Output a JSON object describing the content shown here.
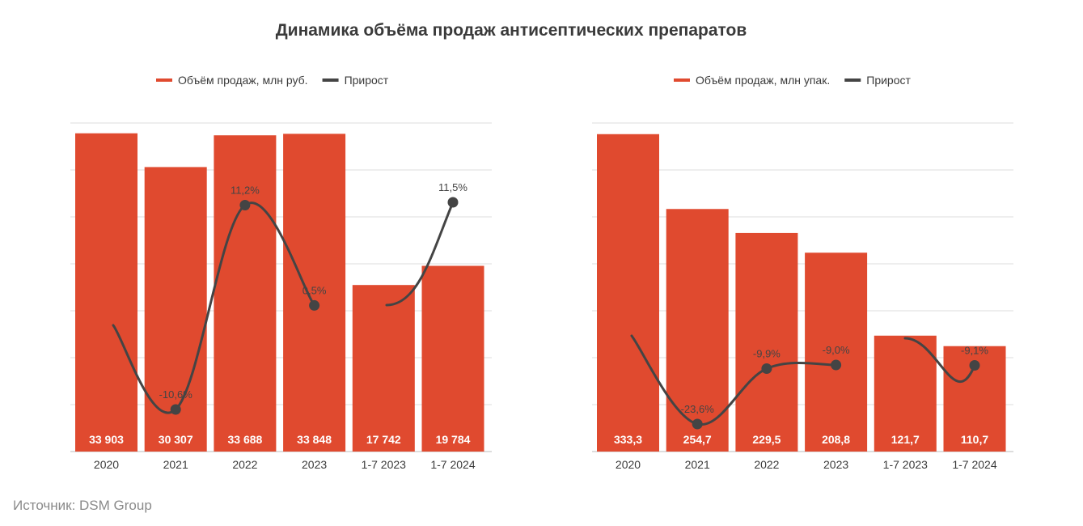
{
  "title": "Динамика объёма продаж антисептических препаратов",
  "source": "Источник: DSM Group",
  "colors": {
    "bar": "#E04A2F",
    "line": "#444444",
    "grid": "#dcdcdc"
  },
  "chart_data": [
    {
      "type": "bar",
      "categories": [
        "2020",
        "2021",
        "2022",
        "2023",
        "1-7 2023",
        "1-7 2024"
      ],
      "series": [
        {
          "name": "Объём продаж, млн руб.",
          "type": "bar",
          "values": [
            33903,
            30307,
            33688,
            33848,
            17742,
            19784
          ],
          "labels": [
            "33 903",
            "30 307",
            "33 688",
            "33 848",
            "17 742",
            "19 784"
          ]
        },
        {
          "name": "Прирост",
          "type": "line",
          "values": [
            null,
            -10.6,
            11.2,
            0.5,
            null,
            11.5
          ],
          "labels": [
            "",
            "-10,6%",
            "11,2%",
            "0,5%",
            "",
            "11,5%"
          ]
        }
      ],
      "legend": "top"
    },
    {
      "type": "bar",
      "categories": [
        "2020",
        "2021",
        "2022",
        "2023",
        "1-7 2023",
        "1-7 2024"
      ],
      "series": [
        {
          "name": "Объём продаж, млн упак.",
          "type": "bar",
          "values": [
            333.3,
            254.7,
            229.5,
            208.8,
            121.7,
            110.7
          ],
          "labels": [
            "333,3",
            "254,7",
            "229,5",
            "208,8",
            "121,7",
            "110,7"
          ]
        },
        {
          "name": "Прирост",
          "type": "line",
          "values": [
            null,
            -23.6,
            -9.9,
            -9.0,
            null,
            -9.1
          ],
          "labels": [
            "",
            "-23,6%",
            "-9,9%",
            "-9,0%",
            "",
            "-9,1%"
          ]
        }
      ],
      "legend": "top"
    }
  ]
}
